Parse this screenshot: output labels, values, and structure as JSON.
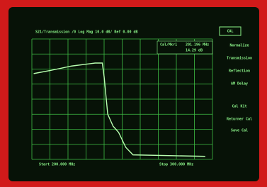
{
  "screen": {
    "header": "S21/Transmission /0 Log Mag 10.0 dB/ Ref 0.00 dB",
    "cal_button": "CAL",
    "menu": [
      "Normalize",
      "Transmission",
      "Reflection",
      "AM Delay",
      "Cal Kit",
      "Returner Cal",
      "Save Cal"
    ],
    "marker": [
      "Cal/Mkr1",
      "201.196 MHz",
      "14.29 dB"
    ],
    "start": "Start 200.000 MHz",
    "stop": "Stop 300.000 MHz",
    "chart_data": {
      "type": "line",
      "xlim": [
        200,
        300
      ],
      "ylim": [
        -80,
        0
      ],
      "xticks": [
        200,
        210,
        220,
        230,
        240,
        250,
        260,
        270,
        280,
        290,
        300
      ],
      "yticks": [
        -80,
        -70,
        -60,
        -50,
        -40,
        -30,
        -20,
        -10,
        0
      ],
      "grid": true,
      "color": "#b8ffb0",
      "x": [
        201,
        210,
        222,
        235,
        239,
        240,
        242,
        245,
        248,
        252,
        256,
        296
      ],
      "values": [
        -23,
        -21,
        -18,
        -16,
        -16,
        -25,
        -50,
        -58,
        -62,
        -72,
        -77,
        -78
      ]
    }
  }
}
